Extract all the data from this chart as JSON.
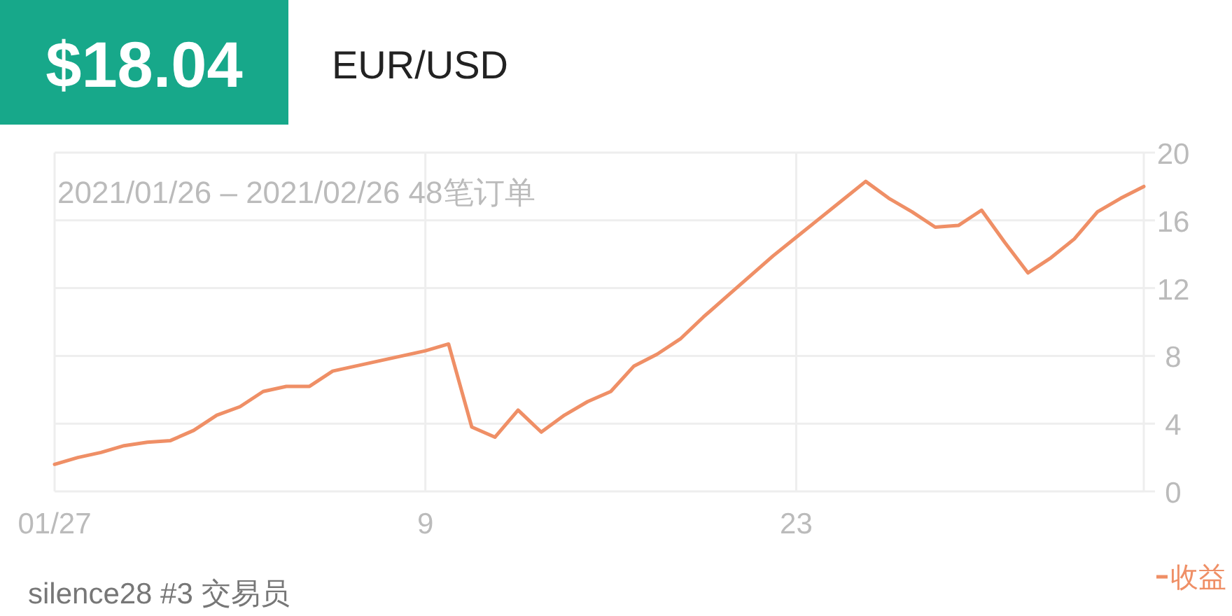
{
  "chart_data": {
    "type": "line",
    "title": "EUR/USD",
    "subtitle": "2021/01/26 – 2021/02/26 48笔订单",
    "annotations": [
      "$18.04",
      "silence28 #3 交易员"
    ],
    "categories": [
      "01/27",
      null,
      null,
      null,
      null,
      null,
      null,
      null,
      null,
      null,
      null,
      null,
      null,
      null,
      null,
      null,
      "9",
      null,
      null,
      null,
      null,
      null,
      null,
      null,
      null,
      null,
      null,
      null,
      null,
      null,
      null,
      null,
      "23",
      null,
      null,
      null,
      null,
      null,
      null,
      null,
      null,
      null,
      null,
      null,
      null,
      null,
      null,
      null
    ],
    "series": [
      {
        "name": "收益",
        "color": "#ef8f66",
        "values": [
          1.6,
          2.0,
          2.3,
          2.7,
          2.9,
          3.0,
          3.6,
          4.5,
          5.0,
          5.9,
          6.2,
          6.2,
          7.1,
          7.4,
          7.7,
          8.0,
          8.3,
          8.7,
          3.8,
          3.2,
          4.8,
          3.5,
          4.5,
          5.3,
          5.9,
          7.4,
          8.1,
          9.0,
          10.3,
          11.5,
          12.7,
          13.9,
          15.0,
          16.1,
          17.2,
          18.3,
          17.3,
          16.5,
          15.6,
          15.7,
          16.6,
          14.7,
          12.9,
          13.8,
          14.9,
          16.5,
          17.3,
          18.0
        ]
      }
    ],
    "ylim": [
      0,
      20
    ],
    "yticks": [
      0,
      4,
      8,
      12,
      16,
      20
    ],
    "grid": true,
    "legend": "bottom right",
    "marker": "none",
    "line_style": "solid"
  }
}
